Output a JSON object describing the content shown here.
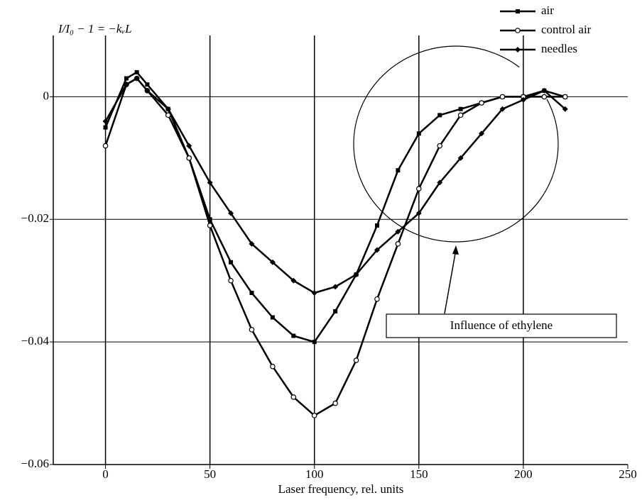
{
  "chart_data": {
    "type": "line",
    "y_label": "I/I₀ − 1 = −kᵥL",
    "x_label": "Laser frequency, rel. units",
    "annotation": "Influence of ethylene",
    "x": [
      0,
      10,
      15,
      20,
      30,
      40,
      50,
      60,
      70,
      80,
      90,
      100,
      110,
      120,
      130,
      140,
      150,
      160,
      170,
      180,
      190,
      200,
      210,
      220
    ],
    "series": [
      {
        "name": "air",
        "color": "#000000",
        "marker": "square",
        "values": [
          -0.005,
          0.003,
          0.004,
          0.002,
          -0.002,
          -0.01,
          -0.02,
          -0.027,
          -0.032,
          -0.036,
          -0.039,
          -0.04,
          -0.035,
          -0.029,
          -0.021,
          -0.012,
          -0.006,
          -0.003,
          -0.002,
          -0.001,
          0.0,
          0.0,
          0.001,
          0.0
        ]
      },
      {
        "name": "control air",
        "color": "#000000",
        "marker": "circle",
        "values": [
          -0.008,
          0.002,
          0.003,
          0.001,
          -0.003,
          -0.01,
          -0.021,
          -0.03,
          -0.038,
          -0.044,
          -0.049,
          -0.052,
          -0.05,
          -0.043,
          -0.033,
          -0.024,
          -0.015,
          -0.008,
          -0.003,
          -0.001,
          0.0,
          0.0,
          0.0,
          0.0
        ]
      },
      {
        "name": "needles",
        "color": "#000000",
        "marker": "diamond",
        "values": [
          -0.004,
          0.002,
          0.003,
          0.001,
          -0.002,
          -0.008,
          -0.014,
          -0.019,
          -0.024,
          -0.027,
          -0.03,
          -0.032,
          -0.031,
          -0.029,
          -0.025,
          -0.022,
          -0.019,
          -0.014,
          -0.01,
          -0.006,
          -0.002,
          -0.0005,
          0.001,
          -0.002
        ]
      }
    ],
    "xlim": [
      -25,
      250
    ],
    "xticks": [
      0,
      50,
      100,
      150,
      200,
      250
    ],
    "ylim": [
      -0.06,
      0.01
    ],
    "yticks": [
      {
        "value": -0.06,
        "label": "−0.06"
      },
      {
        "value": -0.04,
        "label": "−0.04"
      },
      {
        "value": -0.02,
        "label": "−0.02"
      },
      {
        "value": 0,
        "label": "0"
      }
    ],
    "grid": true,
    "legend": "top-right"
  }
}
